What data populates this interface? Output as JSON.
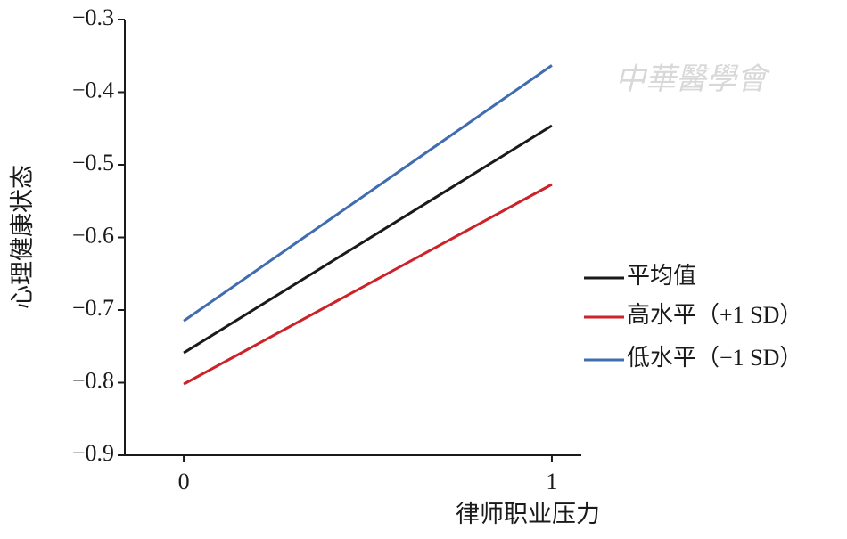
{
  "chart_data": {
    "type": "line",
    "watermark": "中華醫學會",
    "x_label": "律师职业压力",
    "y_label": "心理健康状态",
    "x": [
      0,
      1
    ],
    "xlim": [
      -0.16,
      1.08
    ],
    "xticks": [
      0,
      1
    ],
    "ylim": [
      -0.9,
      -0.3
    ],
    "yticks": [
      {
        "value": -0.3,
        "label": "−0.3"
      },
      {
        "value": -0.4,
        "label": "−0.4"
      },
      {
        "value": -0.5,
        "label": "−0.5"
      },
      {
        "value": -0.6,
        "label": "−0.6"
      },
      {
        "value": -0.7,
        "label": "−0.7"
      },
      {
        "value": -0.8,
        "label": "−0.8"
      },
      {
        "value": -0.9,
        "label": "−0.9"
      }
    ],
    "grid": false,
    "legend": "right",
    "series": [
      {
        "name": "平均值",
        "color": "#1a1a1a",
        "values": [
          -0.759,
          -0.446
        ]
      },
      {
        "name": "高水平（+1 SD）",
        "color": "#cc2229",
        "values": [
          -0.802,
          -0.527
        ]
      },
      {
        "name": "低水平（−1 SD）",
        "color": "#3f6db0",
        "values": [
          -0.715,
          -0.363
        ]
      }
    ]
  }
}
